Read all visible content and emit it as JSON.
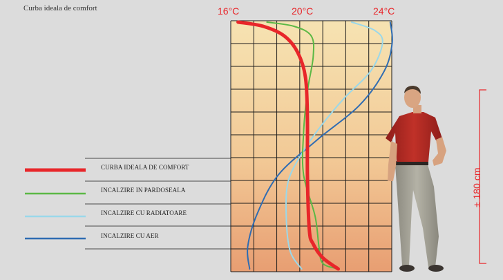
{
  "title": "Curba ideala de comfort",
  "chart_data": {
    "type": "line",
    "x_ticks": [
      "16°C",
      "20°C",
      "24°C"
    ],
    "xlim": [
      16,
      24
    ],
    "y_unit_label": "± 180 cm",
    "grid": true,
    "legend_placement": "left",
    "series": [
      {
        "name": "CURBA IDEALA DE COMFORT",
        "color": "#e8262a",
        "points": [
          [
            16.2,
            180
          ],
          [
            17.5,
            177
          ],
          [
            18.6,
            170
          ],
          [
            19.3,
            158
          ],
          [
            19.7,
            140
          ],
          [
            19.8,
            110
          ],
          [
            19.8,
            70
          ],
          [
            19.9,
            30
          ],
          [
            20.1,
            20
          ],
          [
            20.6,
            10
          ],
          [
            21.4,
            2
          ]
        ]
      },
      {
        "name": "INCALZIRE IN PARDOSEALA",
        "color": "#5bb845",
        "points": [
          [
            17.7,
            180
          ],
          [
            19.1,
            177
          ],
          [
            20.0,
            170
          ],
          [
            20.1,
            155
          ],
          [
            19.8,
            130
          ],
          [
            19.6,
            100
          ],
          [
            19.6,
            70
          ],
          [
            20.2,
            40
          ],
          [
            20.4,
            18
          ],
          [
            20.6,
            6
          ],
          [
            21.4,
            2
          ]
        ]
      },
      {
        "name": "INCALZIRE CU RADIATOARE",
        "color": "#9ad8ea",
        "points": [
          [
            22.1,
            180
          ],
          [
            23.3,
            174
          ],
          [
            23.7,
            165
          ],
          [
            23.1,
            145
          ],
          [
            21.7,
            125
          ],
          [
            20.5,
            105
          ],
          [
            19.5,
            85
          ],
          [
            18.8,
            65
          ],
          [
            18.7,
            40
          ],
          [
            18.9,
            15
          ],
          [
            19.5,
            2
          ]
        ]
      },
      {
        "name": "INCALZIRE CU AER",
        "color": "#2f6cb2",
        "points": [
          [
            24.1,
            180
          ],
          [
            24.2,
            165
          ],
          [
            23.8,
            145
          ],
          [
            22.5,
            120
          ],
          [
            20.3,
            95
          ],
          [
            18.3,
            70
          ],
          [
            17.2,
            42
          ],
          [
            16.7,
            18
          ],
          [
            16.8,
            2
          ]
        ]
      }
    ]
  }
}
